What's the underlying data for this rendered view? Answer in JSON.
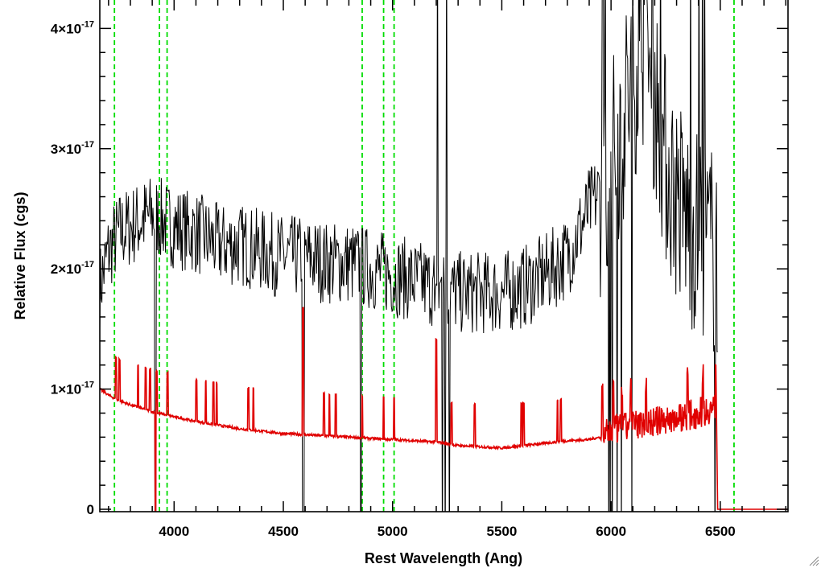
{
  "chart_data": {
    "type": "line",
    "title": "",
    "xlabel": "Rest Wavelength (Ang)",
    "ylabel": "Relative Flux (cgs)",
    "xlim": [
      3660,
      6810
    ],
    "ylim": [
      -2e-19,
      4.25e-17
    ],
    "x_ticks": [
      {
        "value": 4000,
        "label": "4000"
      },
      {
        "value": 4500,
        "label": "4500"
      },
      {
        "value": 5000,
        "label": "5000"
      },
      {
        "value": 5500,
        "label": "5500"
      },
      {
        "value": 6000,
        "label": "6000"
      },
      {
        "value": 6500,
        "label": "6500"
      }
    ],
    "y_ticks": [
      {
        "value": 0,
        "mantissa": "0",
        "exponent": ""
      },
      {
        "value": 1e-17,
        "mantissa": "1×10",
        "exponent": "-17"
      },
      {
        "value": 2e-17,
        "mantissa": "2×10",
        "exponent": "-17"
      },
      {
        "value": 3e-17,
        "mantissa": "3×10",
        "exponent": "-17"
      },
      {
        "value": 4e-17,
        "mantissa": "4×10",
        "exponent": "-17"
      }
    ],
    "grid": false,
    "legend": "none",
    "reference_lines": {
      "color": "#00dd00",
      "style": "dashed",
      "x": [
        3727,
        3933,
        3968,
        4861,
        4959,
        5007,
        6563
      ]
    },
    "series": [
      {
        "color": "#000000",
        "style": "noisy spectrum",
        "x": [
          3660,
          3700,
          3750,
          3800,
          3850,
          3900,
          3950,
          4000,
          4100,
          4200,
          4300,
          4400,
          4500,
          4600,
          4700,
          4800,
          4900,
          5000,
          5100,
          5200,
          5300,
          5400,
          5500,
          5600,
          5700,
          5800,
          5850,
          5900,
          5950,
          6000,
          6050,
          6100,
          6150,
          6200,
          6250,
          6300,
          6350,
          6400,
          6450,
          6490
        ],
        "y": [
          1.85e-17,
          2.15e-17,
          2.3e-17,
          2.35e-17,
          2.4e-17,
          2.45e-17,
          2.4e-17,
          2.35e-17,
          2.3e-17,
          2.2e-17,
          2.2e-17,
          2.15e-17,
          2.1e-17,
          2.1e-17,
          2.05e-17,
          2.05e-17,
          2e-17,
          1.95e-17,
          1.9e-17,
          1.85e-17,
          1.8e-17,
          1.8e-17,
          1.8e-17,
          1.85e-17,
          1.95e-17,
          2.1e-17,
          2.3e-17,
          2.5e-17,
          2.65e-17,
          2.85e-17,
          3.2e-17,
          3.6e-17,
          3.9e-17,
          3.5e-17,
          2.9e-17,
          2.6e-17,
          2.4e-17,
          2.3e-17,
          2.2e-17,
          2.1e-17
        ]
      },
      {
        "color": "#e00000",
        "style": "model continuum",
        "x": [
          3660,
          3700,
          3750,
          3800,
          3850,
          3900,
          3950,
          4000,
          4100,
          4200,
          4300,
          4400,
          4500,
          4600,
          4700,
          4800,
          4900,
          5000,
          5100,
          5200,
          5300,
          5400,
          5500,
          5600,
          5700,
          5800,
          5900,
          5950,
          6000,
          6100,
          6200,
          6300,
          6400,
          6480
        ],
        "y": [
          1e-17,
          9.5e-18,
          9e-18,
          8.7e-18,
          8.4e-18,
          8.1e-18,
          7.9e-18,
          7.7e-18,
          7.3e-18,
          7e-18,
          6.7e-18,
          6.5e-18,
          6.3e-18,
          6.2e-18,
          6.1e-18,
          6e-18,
          5.9e-18,
          5.8e-18,
          5.7e-18,
          5.6e-18,
          5.3e-18,
          5.2e-18,
          5.1e-18,
          5.3e-18,
          5.5e-18,
          5.7e-18,
          5.8e-18,
          6e-18,
          6.5e-18,
          7e-18,
          7.3e-18,
          7.6e-18,
          8e-18,
          8.5e-18
        ]
      }
    ]
  }
}
